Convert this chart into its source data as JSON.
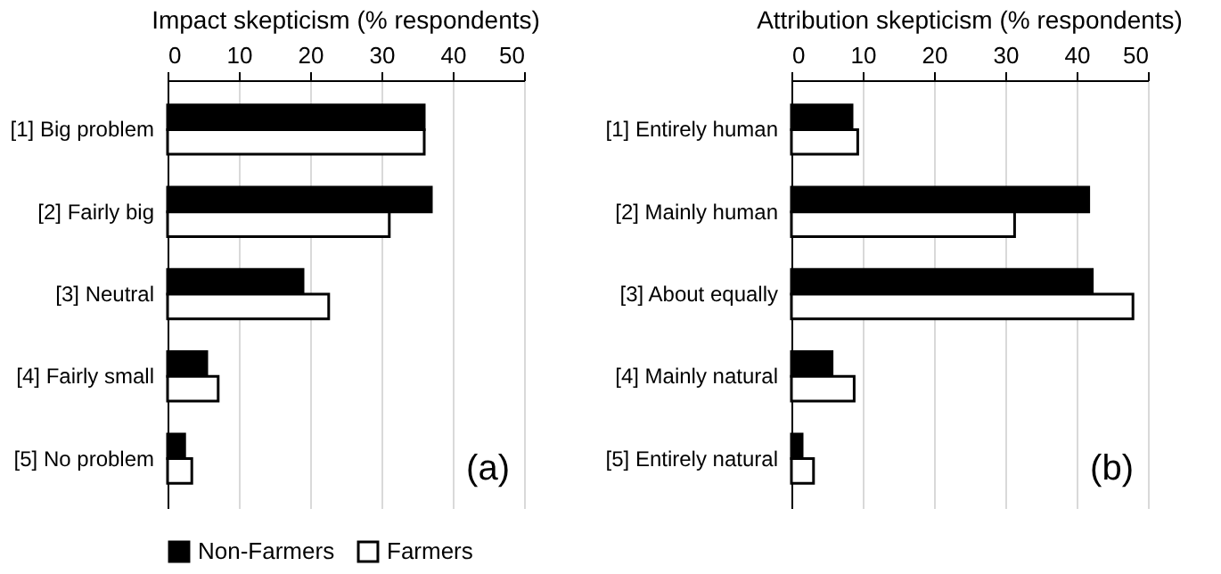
{
  "chart_data": [
    {
      "type": "bar",
      "orientation": "horizontal",
      "title": "Impact skepticism  (% respondents)",
      "categories": [
        "[1] Big problem",
        "[2]  Fairly big",
        "[3] Neutral",
        "[4] Fairly small",
        "[5] No problem"
      ],
      "series": [
        {
          "name": "Non-Farmers",
          "color": "#000000",
          "values": [
            36.0,
            37.0,
            19.0,
            5.5,
            2.4
          ]
        },
        {
          "name": "Farmers",
          "color": "#ffffff",
          "values": [
            36.0,
            31.1,
            22.6,
            7.1,
            3.4
          ]
        }
      ],
      "xlim": [
        0,
        50
      ],
      "xticks": [
        0,
        10,
        20,
        30,
        40,
        50
      ],
      "grid": "x",
      "legend": "bottom left",
      "annotations": [
        "(a)"
      ]
    },
    {
      "type": "bar",
      "orientation": "horizontal",
      "title": "Attribution skepticism  (% respondents)",
      "categories": [
        "[1] Entirely  human",
        "[2] Mainly human",
        "[3] About equally",
        "[4] Mainly natural",
        "[5] Entirely natural"
      ],
      "series": [
        {
          "name": "Non-Farmers",
          "color": "#000000",
          "values": [
            8.5,
            41.7,
            42.2,
            5.7,
            1.5
          ]
        },
        {
          "name": "Farmers",
          "color": "#ffffff",
          "values": [
            9.3,
            31.3,
            47.9,
            8.8,
            3.1
          ]
        }
      ],
      "xlim": [
        0,
        50
      ],
      "xticks": [
        0,
        10,
        20,
        30,
        40,
        50
      ],
      "grid": "x",
      "legend": "bottom left",
      "annotations": [
        "(b)"
      ]
    }
  ]
}
